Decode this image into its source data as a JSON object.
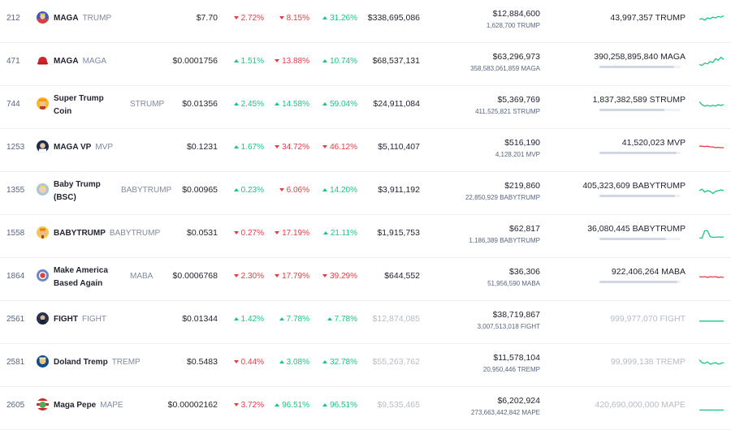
{
  "colors": {
    "up": "#16c784",
    "down": "#ea3943",
    "muted": "#808a9d",
    "faded": "#b6bcc7"
  },
  "rows": [
    {
      "rank": "212",
      "name": "MAGA",
      "symbol": "TRUMP",
      "icon": "trump-flag-icon",
      "price": "$7.70",
      "change_1h": "2.72%",
      "dir_1h": "down",
      "change_24h": "8.15%",
      "dir_24h": "down",
      "change_7d": "31.26%",
      "dir_7d": "up",
      "market_cap": "$338,695,086",
      "mcap_faded": false,
      "volume": "$12,884,600",
      "volume_tokens": "1,628,700 TRUMP",
      "supply": "43,997,357 TRUMP",
      "supply_faded": false,
      "supply_fraction": null,
      "spark_color": "#16c784",
      "spark_trend": [
        0.55,
        0.5,
        0.6,
        0.45,
        0.5,
        0.4,
        0.45,
        0.35,
        0.4,
        0.3
      ]
    },
    {
      "rank": "471",
      "name": "MAGA",
      "symbol": "MAGA",
      "icon": "red-hat-icon",
      "price": "$0.0001756",
      "change_1h": "1.51%",
      "dir_1h": "up",
      "change_24h": "13.88%",
      "dir_24h": "down",
      "change_7d": "10.74%",
      "dir_7d": "up",
      "market_cap": "$68,537,131",
      "mcap_faded": false,
      "volume": "$63,296,973",
      "volume_tokens": "358,583,061,859 MAGA",
      "supply": "390,258,895,840 MAGA",
      "supply_faded": false,
      "supply_fraction": 0.92,
      "spark_color": "#16c784",
      "spark_trend": [
        0.7,
        0.75,
        0.6,
        0.65,
        0.5,
        0.55,
        0.3,
        0.4,
        0.2,
        0.35
      ]
    },
    {
      "rank": "744",
      "name": "Super Trump Coin",
      "symbol": "STRUMP",
      "icon": "super-trump-icon",
      "price": "$0.01356",
      "change_1h": "2.45%",
      "dir_1h": "up",
      "change_24h": "14.58%",
      "dir_24h": "up",
      "change_7d": "59.04%",
      "dir_7d": "up",
      "market_cap": "$24,911,084",
      "mcap_faded": false,
      "volume": "$5,369,769",
      "volume_tokens": "411,525,821 STRUMP",
      "supply": "1,837,382,589 STRUMP",
      "supply_faded": false,
      "supply_fraction": 0.8,
      "spark_color": "#16c784",
      "spark_trend": [
        0.3,
        0.5,
        0.6,
        0.55,
        0.6,
        0.55,
        0.6,
        0.5,
        0.55,
        0.5
      ]
    },
    {
      "rank": "1253",
      "name": "MAGA VP",
      "symbol": "MVP",
      "icon": "mvp-icon",
      "price": "$0.1231",
      "change_1h": "1.67%",
      "dir_1h": "up",
      "change_24h": "34.72%",
      "dir_24h": "down",
      "change_7d": "46.12%",
      "dir_7d": "down",
      "market_cap": "$5,110,407",
      "mcap_faded": false,
      "volume": "$516,190",
      "volume_tokens": "4,128,201 MVP",
      "supply": "41,520,023 MVP",
      "supply_faded": false,
      "supply_fraction": 0.95,
      "spark_color": "#ea3943",
      "spark_trend": [
        0.4,
        0.4,
        0.42,
        0.4,
        0.45,
        0.45,
        0.5,
        0.48,
        0.5,
        0.5
      ]
    },
    {
      "rank": "1355",
      "name": "Baby Trump (BSC)",
      "symbol": "BABYTRUMP",
      "icon": "baby-trump-bsc-icon",
      "price": "$0.00965",
      "change_1h": "0.23%",
      "dir_1h": "up",
      "change_24h": "6.06%",
      "dir_24h": "down",
      "change_7d": "14.20%",
      "dir_7d": "up",
      "market_cap": "$3,911,192",
      "mcap_faded": false,
      "volume": "$219,860",
      "volume_tokens": "22,850,929 BABYTRUMP",
      "supply": "405,323,609 BABYTRUMP",
      "supply_faded": false,
      "supply_fraction": 0.93,
      "spark_color": "#16c784",
      "spark_trend": [
        0.5,
        0.4,
        0.6,
        0.5,
        0.55,
        0.7,
        0.55,
        0.5,
        0.45,
        0.5
      ]
    },
    {
      "rank": "1558",
      "name": "BABYTRUMP",
      "symbol": "BABYTRUMP",
      "icon": "babytrump-icon",
      "price": "$0.0531",
      "change_1h": "0.27%",
      "dir_1h": "down",
      "change_24h": "17.19%",
      "dir_24h": "down",
      "change_7d": "21.11%",
      "dir_7d": "up",
      "market_cap": "$1,915,753",
      "mcap_faded": false,
      "volume": "$62,817",
      "volume_tokens": "1,186,389 BABYTRUMP",
      "supply": "36,080,445 BABYTRUMP",
      "supply_faded": false,
      "supply_fraction": 0.82,
      "spark_color": "#16c784",
      "spark_trend": [
        0.8,
        0.8,
        0.3,
        0.3,
        0.7,
        0.75,
        0.75,
        0.72,
        0.74,
        0.72
      ]
    },
    {
      "rank": "1864",
      "name": "Make America Based Again",
      "symbol": "MABA",
      "icon": "maba-icon",
      "price": "$0.0006768",
      "change_1h": "2.30%",
      "dir_1h": "down",
      "change_24h": "17.79%",
      "dir_24h": "down",
      "change_7d": "39.29%",
      "dir_7d": "down",
      "market_cap": "$644,552",
      "mcap_faded": false,
      "volume": "$36,306",
      "volume_tokens": "51,956,590 MABA",
      "supply": "922,406,264 MABA",
      "supply_faded": false,
      "supply_fraction": 0.96,
      "spark_color": "#ea3943",
      "spark_trend": [
        0.5,
        0.52,
        0.5,
        0.55,
        0.5,
        0.52,
        0.5,
        0.55,
        0.52,
        0.55
      ]
    },
    {
      "rank": "2561",
      "name": "FIGHT",
      "symbol": "FIGHT",
      "icon": "fight-icon",
      "price": "$0.01344",
      "change_1h": "1.42%",
      "dir_1h": "up",
      "change_24h": "7.78%",
      "dir_24h": "up",
      "change_7d": "7.78%",
      "dir_7d": "up",
      "market_cap": "$12,874,085",
      "mcap_faded": true,
      "volume": "$38,719,867",
      "volume_tokens": "3,007,513,018 FIGHT",
      "supply": "999,977,070 FIGHT",
      "supply_faded": true,
      "supply_fraction": null,
      "spark_color": "#16c784",
      "spark_trend": [
        0.6,
        0.6,
        0.6,
        0.6,
        0.6,
        0.6
      ]
    },
    {
      "rank": "2581",
      "name": "Doland Tremp",
      "symbol": "TREMP",
      "icon": "doland-tremp-icon",
      "price": "$0.5483",
      "change_1h": "0.44%",
      "dir_1h": "down",
      "change_24h": "3.08%",
      "dir_24h": "up",
      "change_7d": "32.78%",
      "dir_7d": "up",
      "market_cap": "$55,263,762",
      "mcap_faded": true,
      "volume": "$11,578,104",
      "volume_tokens": "20,950,446 TREMP",
      "supply": "99,999,138 TREMP",
      "supply_faded": true,
      "supply_fraction": null,
      "spark_color": "#16c784",
      "spark_trend": [
        0.3,
        0.5,
        0.55,
        0.45,
        0.6,
        0.55,
        0.5,
        0.6,
        0.55,
        0.5
      ]
    },
    {
      "rank": "2605",
      "name": "Maga Pepe",
      "symbol": "MAPE",
      "icon": "maga-pepe-icon",
      "price": "$0.00002162",
      "change_1h": "3.72%",
      "dir_1h": "down",
      "change_24h": "96.51%",
      "dir_24h": "up",
      "change_7d": "96.51%",
      "dir_7d": "up",
      "market_cap": "$9,535,465",
      "mcap_faded": true,
      "volume": "$6,202,924",
      "volume_tokens": "273,663,442,842 MAPE",
      "supply": "420,690,000,000 MAPE",
      "supply_faded": true,
      "supply_fraction": null,
      "spark_color": "#16c784",
      "spark_trend": [
        0.8,
        0.8,
        0.8,
        0.8
      ]
    }
  ]
}
